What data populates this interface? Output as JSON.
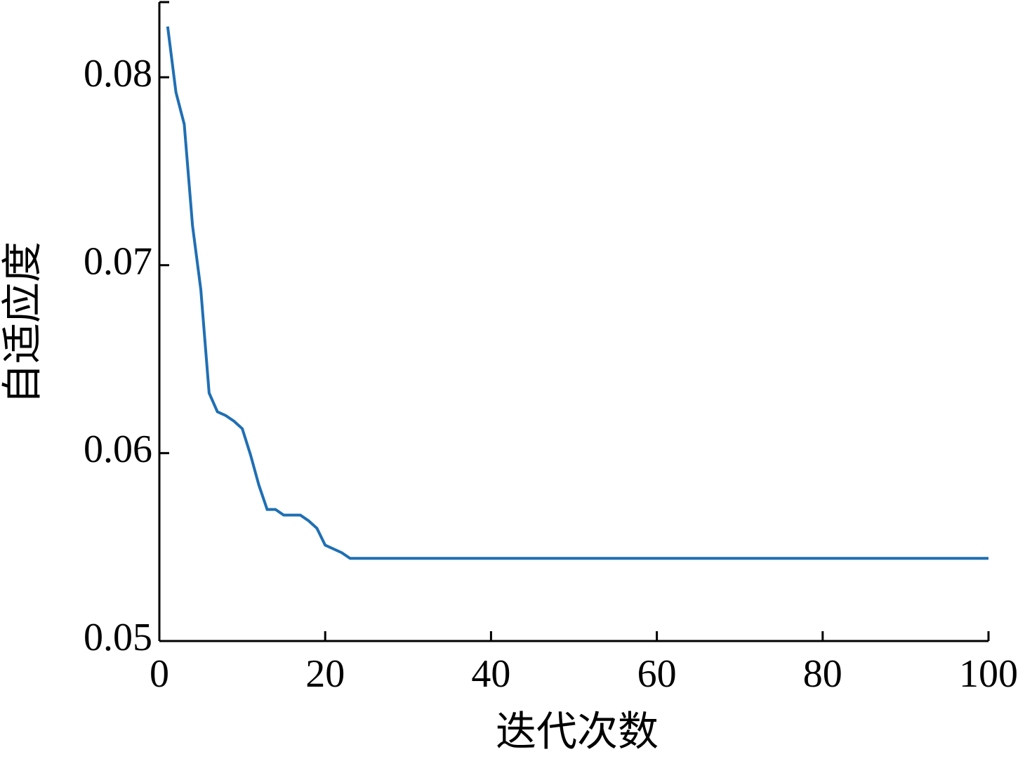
{
  "chart_data": {
    "type": "line",
    "x_label": "迭代次数",
    "y_label": "自适应度",
    "x": [
      1,
      2,
      3,
      4,
      5,
      6,
      7,
      8,
      9,
      10,
      11,
      12,
      13,
      14,
      15,
      16,
      17,
      18,
      19,
      20,
      21,
      22,
      23,
      24,
      25,
      26,
      27,
      28,
      29,
      30,
      31,
      32,
      33,
      34,
      35,
      36,
      37,
      38,
      39,
      40,
      41,
      42,
      43,
      44,
      45,
      46,
      47,
      48,
      49,
      50,
      51,
      52,
      53,
      54,
      55,
      56,
      57,
      58,
      59,
      60,
      61,
      62,
      63,
      64,
      65,
      66,
      67,
      68,
      69,
      70,
      71,
      72,
      73,
      74,
      75,
      76,
      77,
      78,
      79,
      80,
      81,
      82,
      83,
      84,
      85,
      86,
      87,
      88,
      89,
      90,
      91,
      92,
      93,
      94,
      95,
      96,
      97,
      98,
      99,
      100
    ],
    "series": [
      {
        "color": "#1f6fb4",
        "values": [
          0.0827,
          0.0792,
          0.0775,
          0.0721,
          0.0687,
          0.0632,
          0.0622,
          0.062,
          0.0617,
          0.0613,
          0.0599,
          0.0583,
          0.057,
          0.057,
          0.0567,
          0.0567,
          0.0567,
          0.0564,
          0.056,
          0.0551,
          0.0549,
          0.0547,
          0.0544,
          0.0544,
          0.0544,
          0.0544,
          0.0544,
          0.0544,
          0.0544,
          0.0544,
          0.0544,
          0.0544,
          0.0544,
          0.0544,
          0.0544,
          0.0544,
          0.0544,
          0.0544,
          0.0544,
          0.0544,
          0.0544,
          0.0544,
          0.0544,
          0.0544,
          0.0544,
          0.0544,
          0.0544,
          0.0544,
          0.0544,
          0.0544,
          0.0544,
          0.0544,
          0.0544,
          0.0544,
          0.0544,
          0.0544,
          0.0544,
          0.0544,
          0.0544,
          0.0544,
          0.0544,
          0.0544,
          0.0544,
          0.0544,
          0.0544,
          0.0544,
          0.0544,
          0.0544,
          0.0544,
          0.0544,
          0.0544,
          0.0544,
          0.0544,
          0.0544,
          0.0544,
          0.0544,
          0.0544,
          0.0544,
          0.0544,
          0.0544,
          0.0544,
          0.0544,
          0.0544,
          0.0544,
          0.0544,
          0.0544,
          0.0544,
          0.0544,
          0.0544,
          0.0544,
          0.0544,
          0.0544,
          0.0544,
          0.0544,
          0.0544,
          0.0544,
          0.0544,
          0.0544,
          0.0544,
          0.0544
        ]
      }
    ],
    "xlim": [
      0,
      100
    ],
    "xticks": [
      0,
      20,
      40,
      60,
      80,
      100
    ],
    "ylim": [
      0.05,
      0.084
    ],
    "yticks": [
      0.05,
      0.06,
      0.07,
      0.08
    ]
  }
}
